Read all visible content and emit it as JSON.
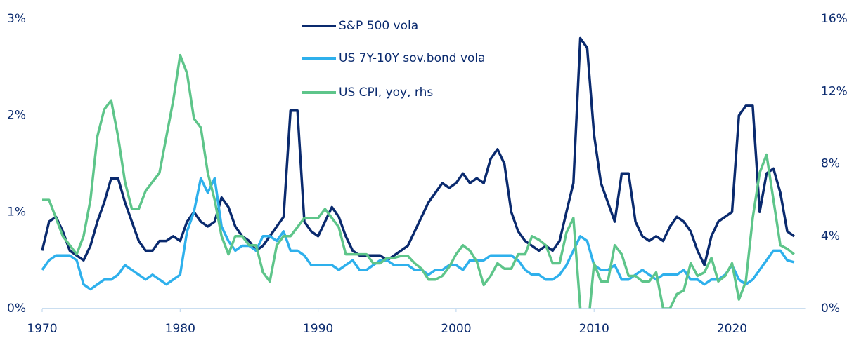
{
  "chart_data": {
    "type": "line",
    "x": [
      1970,
      1970.5,
      1971,
      1971.5,
      1972,
      1972.5,
      1973,
      1973.5,
      1974,
      1974.5,
      1975,
      1975.5,
      1976,
      1976.5,
      1977,
      1977.5,
      1978,
      1978.5,
      1979,
      1979.5,
      1980,
      1980.5,
      1981,
      1981.5,
      1982,
      1982.5,
      1983,
      1983.5,
      1984,
      1984.5,
      1985,
      1985.5,
      1986,
      1986.5,
      1987,
      1987.5,
      1988,
      1988.5,
      1989,
      1989.5,
      1990,
      1990.5,
      1991,
      1991.5,
      1992,
      1992.5,
      1993,
      1993.5,
      1994,
      1994.5,
      1995,
      1995.5,
      1996,
      1996.5,
      1997,
      1997.5,
      1998,
      1998.5,
      1999,
      1999.5,
      2000,
      2000.5,
      2001,
      2001.5,
      2002,
      2002.5,
      2003,
      2003.5,
      2004,
      2004.5,
      2005,
      2005.5,
      2006,
      2006.5,
      2007,
      2007.5,
      2008,
      2008.5,
      2009,
      2009.5,
      2010,
      2010.5,
      2011,
      2011.5,
      2012,
      2012.5,
      2013,
      2013.5,
      2014,
      2014.5,
      2015,
      2015.5,
      2016,
      2016.5,
      2017,
      2017.5,
      2018,
      2018.5,
      2019,
      2019.5,
      2020,
      2020.5,
      2021,
      2021.5,
      2022,
      2022.5,
      2023,
      2023.5,
      2024,
      2024.5
    ],
    "xlim": [
      1970,
      2025.2
    ],
    "xticks": [
      1970,
      1980,
      1990,
      2000,
      2010,
      2020
    ],
    "ylim": [
      0,
      3
    ],
    "yticks": [
      {
        "value": 0,
        "label": "0%"
      },
      {
        "value": 1,
        "label": "1%"
      },
      {
        "value": 2,
        "label": "2%"
      },
      {
        "value": 3,
        "label": "3%"
      }
    ],
    "y2lim": [
      0,
      16
    ],
    "y2ticks": [
      {
        "value": 0,
        "label": "0%"
      },
      {
        "value": 4,
        "label": "4%"
      },
      {
        "value": 8,
        "label": "8%"
      },
      {
        "value": 12,
        "label": "12%"
      },
      {
        "value": 16,
        "label": "16%"
      }
    ],
    "series": [
      {
        "name": "S&P 500 vola",
        "color": "#0a2a6e",
        "values": [
          0.6,
          0.9,
          0.95,
          0.8,
          0.6,
          0.55,
          0.5,
          0.65,
          0.9,
          1.1,
          1.35,
          1.35,
          1.1,
          0.9,
          0.7,
          0.6,
          0.6,
          0.7,
          0.7,
          0.75,
          0.7,
          0.9,
          1.0,
          0.9,
          0.85,
          0.9,
          1.15,
          1.05,
          0.85,
          0.75,
          0.7,
          0.6,
          0.65,
          0.75,
          0.85,
          0.95,
          2.05,
          2.05,
          0.9,
          0.8,
          0.75,
          0.9,
          1.05,
          0.95,
          0.75,
          0.6,
          0.55,
          0.55,
          0.55,
          0.55,
          0.5,
          0.55,
          0.6,
          0.65,
          0.8,
          0.95,
          1.1,
          1.2,
          1.3,
          1.25,
          1.3,
          1.4,
          1.3,
          1.35,
          1.3,
          1.55,
          1.65,
          1.5,
          1.0,
          0.8,
          0.7,
          0.65,
          0.6,
          0.65,
          0.6,
          0.7,
          1.0,
          1.3,
          2.8,
          2.7,
          1.8,
          1.3,
          1.1,
          0.9,
          1.4,
          1.4,
          0.9,
          0.75,
          0.7,
          0.75,
          0.7,
          0.85,
          0.95,
          0.9,
          0.8,
          0.6,
          0.45,
          0.75,
          0.9,
          0.95,
          1.0,
          2.0,
          2.1,
          2.1,
          1.0,
          1.4,
          1.45,
          1.2,
          0.8,
          0.75
        ]
      },
      {
        "name": "US 7Y-10Y sov.bond vola",
        "color": "#2eb0ec",
        "values": [
          0.4,
          0.5,
          0.55,
          0.55,
          0.55,
          0.5,
          0.25,
          0.2,
          0.25,
          0.3,
          0.3,
          0.35,
          0.45,
          0.4,
          0.35,
          0.3,
          0.35,
          0.3,
          0.25,
          0.3,
          0.35,
          0.8,
          1.0,
          1.35,
          1.2,
          1.35,
          0.85,
          0.7,
          0.6,
          0.65,
          0.65,
          0.6,
          0.75,
          0.75,
          0.7,
          0.8,
          0.6,
          0.6,
          0.55,
          0.45,
          0.45,
          0.45,
          0.45,
          0.4,
          0.45,
          0.5,
          0.4,
          0.4,
          0.45,
          0.5,
          0.5,
          0.45,
          0.45,
          0.45,
          0.4,
          0.4,
          0.35,
          0.4,
          0.4,
          0.45,
          0.45,
          0.4,
          0.5,
          0.5,
          0.5,
          0.55,
          0.55,
          0.55,
          0.55,
          0.5,
          0.4,
          0.35,
          0.35,
          0.3,
          0.3,
          0.35,
          0.45,
          0.6,
          0.75,
          0.7,
          0.45,
          0.4,
          0.4,
          0.45,
          0.3,
          0.3,
          0.35,
          0.4,
          0.35,
          0.3,
          0.35,
          0.35,
          0.35,
          0.4,
          0.3,
          0.3,
          0.25,
          0.3,
          0.3,
          0.35,
          0.45,
          0.3,
          0.25,
          0.3,
          0.4,
          0.5,
          0.6,
          0.6,
          0.5,
          0.48
        ]
      },
      {
        "name": "US CPI, yoy, rhs",
        "color": "#5ec58a",
        "axis": "y2",
        "values": [
          6.0,
          6.0,
          5.0,
          4.0,
          3.5,
          3.0,
          4.0,
          6.0,
          9.5,
          11.0,
          11.5,
          9.5,
          7.0,
          5.5,
          5.5,
          6.5,
          7.0,
          7.5,
          9.5,
          11.5,
          14.0,
          13.0,
          10.5,
          10.0,
          7.5,
          6.0,
          4.0,
          3.0,
          4.0,
          4.0,
          3.5,
          3.5,
          2.0,
          1.5,
          3.5,
          4.0,
          4.0,
          4.5,
          5.0,
          5.0,
          5.0,
          5.5,
          5.0,
          4.5,
          3.0,
          3.0,
          3.0,
          3.0,
          2.5,
          2.5,
          2.8,
          2.8,
          2.9,
          2.9,
          2.5,
          2.2,
          1.6,
          1.6,
          1.8,
          2.3,
          3.0,
          3.5,
          3.2,
          2.6,
          1.3,
          1.8,
          2.5,
          2.2,
          2.2,
          3.0,
          3.0,
          4.0,
          3.8,
          3.5,
          2.5,
          2.5,
          4.2,
          5.0,
          0.0,
          -1.5,
          2.5,
          1.5,
          1.5,
          3.5,
          3.0,
          1.8,
          1.8,
          1.5,
          1.5,
          2.0,
          0.0,
          0.0,
          0.8,
          1.0,
          2.5,
          1.8,
          2.0,
          2.8,
          1.5,
          1.8,
          2.5,
          0.5,
          1.5,
          5.0,
          7.5,
          8.5,
          6.0,
          3.5,
          3.3,
          3.0
        ]
      }
    ]
  }
}
